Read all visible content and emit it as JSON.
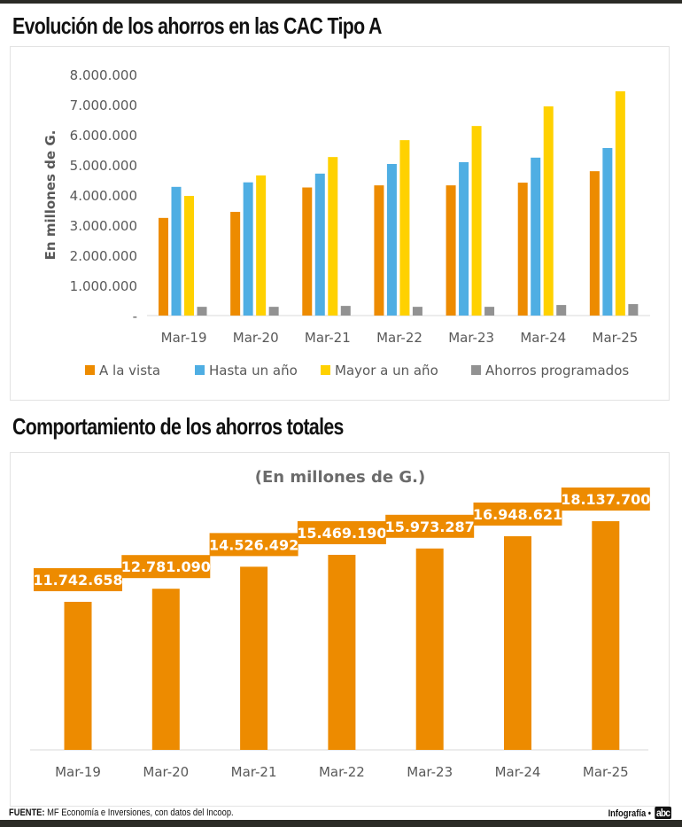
{
  "titles": {
    "chart1": "Evolución de los ahorros en las CAC Tipo A",
    "chart2": "Comportamiento de los ahorros totales"
  },
  "footer": {
    "source_label": "FUENTE:",
    "source_text": "MF Economía e Inversiones, con datos del Incoop.",
    "credit": "Infografía •",
    "logo": "abc"
  },
  "chart_data": [
    {
      "type": "bar",
      "title": "Evolución de los ahorros en las CAC Tipo A",
      "xlabel": "",
      "ylabel": "En millones de G.",
      "ylim": [
        0,
        8000000
      ],
      "yticks": [
        0,
        1000000,
        2000000,
        3000000,
        4000000,
        5000000,
        6000000,
        7000000,
        8000000
      ],
      "ytick_labels": [
        "-",
        "1.000.000",
        "2.000.000",
        "3.000.000",
        "4.000.000",
        "5.000.000",
        "6.000.000",
        "7.000.000",
        "8.000.000"
      ],
      "grid": false,
      "legend_position": "bottom",
      "categories": [
        "Mar-19",
        "Mar-20",
        "Mar-21",
        "Mar-22",
        "Mar-23",
        "Mar-24",
        "Mar-25"
      ],
      "series": [
        {
          "name": "A la vista",
          "color": "#ED8B00",
          "values": [
            3240000,
            3440000,
            4250000,
            4320000,
            4320000,
            4410000,
            4790000
          ]
        },
        {
          "name": "Hasta un año",
          "color": "#4FAEE3",
          "values": [
            4270000,
            4420000,
            4710000,
            5030000,
            5090000,
            5240000,
            5560000
          ]
        },
        {
          "name": "Mayor a un año",
          "color": "#FFD100",
          "values": [
            3970000,
            4650000,
            5260000,
            5820000,
            6290000,
            6940000,
            7440000
          ]
        },
        {
          "name": "Ahorros programados",
          "color": "#929292",
          "values": [
            290000,
            290000,
            320000,
            290000,
            290000,
            350000,
            380000
          ]
        }
      ]
    },
    {
      "type": "bar",
      "title": "Comportamiento de los ahorros totales",
      "subtitle": "(En millones de G.)",
      "xlabel": "",
      "ylabel": "",
      "ylim": [
        0,
        20000000
      ],
      "grid": false,
      "color": "#ED8B00",
      "categories": [
        "Mar-19",
        "Mar-20",
        "Mar-21",
        "Mar-22",
        "Mar-23",
        "Mar-24",
        "Mar-25"
      ],
      "values": [
        11742658,
        12781090,
        14526492,
        15469190,
        15973287,
        16948621,
        18137700
      ],
      "data_labels": [
        "11.742.658",
        "12.781.090",
        "14.526.492",
        "15.469.190",
        "15.973.287",
        "16.948.621",
        "18.137.700"
      ]
    }
  ]
}
